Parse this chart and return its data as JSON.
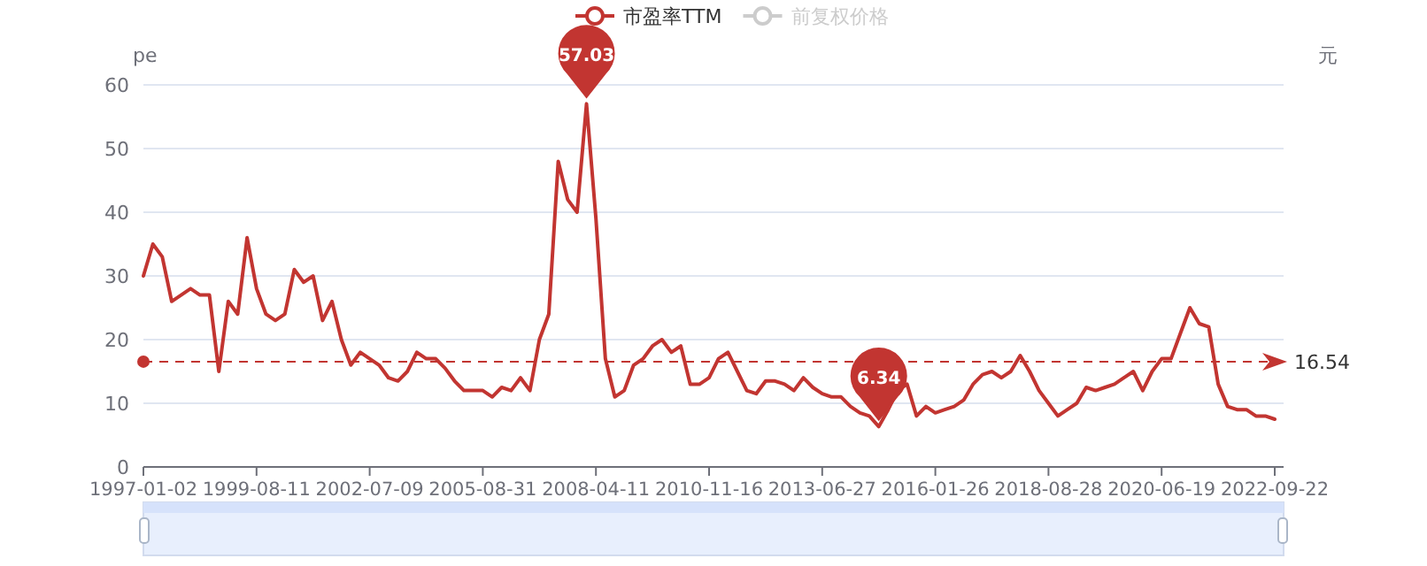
{
  "chart_data": {
    "type": "line",
    "ylabel": "pe",
    "y2label": "元",
    "legend": "top",
    "grid": "y",
    "marker": "none",
    "line_style": "solid",
    "categories": [
      "1997-01-02",
      null,
      null,
      null,
      null,
      null,
      null,
      null,
      null,
      null,
      null,
      null,
      "1999-08-11",
      null,
      null,
      null,
      null,
      null,
      null,
      null,
      null,
      null,
      null,
      null,
      "2002-07-09",
      null,
      null,
      null,
      null,
      null,
      null,
      null,
      null,
      null,
      null,
      null,
      "2005-08-31",
      null,
      null,
      null,
      null,
      null,
      null,
      null,
      null,
      null,
      null,
      null,
      "2008-04-11",
      null,
      null,
      null,
      null,
      null,
      null,
      null,
      null,
      null,
      null,
      null,
      "2010-11-16",
      null,
      null,
      null,
      null,
      null,
      null,
      null,
      null,
      null,
      null,
      null,
      "2013-06-27",
      null,
      null,
      null,
      null,
      null,
      null,
      null,
      null,
      null,
      null,
      null,
      "2016-01-26",
      null,
      null,
      null,
      null,
      null,
      null,
      null,
      null,
      null,
      null,
      null,
      "2018-08-28",
      null,
      null,
      null,
      null,
      null,
      null,
      null,
      null,
      null,
      null,
      null,
      "2020-06-19",
      null,
      null,
      null,
      null,
      null,
      null,
      null,
      null,
      null,
      null,
      null,
      "2022-09-22"
    ],
    "ylim": [
      0,
      60
    ],
    "yticks": [
      0,
      10,
      20,
      30,
      40,
      50,
      60
    ],
    "series": [
      {
        "name": "市盈率TTM",
        "color": "#c23531",
        "values": [
          30,
          35,
          33,
          26,
          27,
          28,
          27,
          27,
          15,
          26,
          24,
          36,
          28,
          24,
          23,
          24,
          31,
          29,
          30,
          23,
          26,
          20,
          16,
          18,
          17,
          16,
          14,
          13.5,
          15,
          18,
          17,
          17,
          15.5,
          13.5,
          12,
          12,
          12,
          11,
          12.5,
          12,
          14,
          12,
          20,
          24,
          48,
          42,
          40,
          57.03,
          39,
          17,
          11,
          12,
          16,
          17,
          19,
          20,
          18,
          19,
          13,
          13,
          14,
          17,
          18,
          15,
          12,
          11.5,
          13.5,
          13.5,
          13,
          12,
          14,
          12.5,
          11.5,
          11,
          11,
          9.5,
          8.5,
          8,
          6.34,
          9,
          12,
          13,
          8,
          9.5,
          8.5,
          9,
          9.5,
          10.5,
          13,
          14.5,
          15,
          14,
          15,
          17.5,
          15,
          12,
          10,
          8,
          9,
          10,
          12.5,
          12,
          12.5,
          13,
          14,
          15,
          12,
          15,
          17,
          17,
          21,
          25,
          22.5,
          22,
          13,
          9.5,
          9,
          9,
          8,
          8,
          7.5
        ]
      },
      {
        "name": "前复权价格",
        "color": "#cccccc",
        "axis": "y2",
        "values": [
          null,
          null,
          null,
          null,
          null,
          null,
          null,
          null,
          null,
          null,
          null,
          null,
          null,
          null,
          null,
          null,
          null,
          null,
          null,
          null,
          null,
          null,
          null,
          null,
          null,
          null,
          null,
          null,
          null,
          null,
          null,
          null,
          null,
          null,
          null,
          null,
          null,
          null,
          null,
          null,
          null,
          null,
          null,
          null,
          null,
          null,
          null,
          null,
          null,
          null,
          null,
          null,
          null,
          null,
          null,
          null,
          null,
          null,
          null,
          null,
          null,
          null,
          null,
          null,
          null,
          null,
          null,
          null,
          null,
          null,
          null,
          null,
          null,
          null,
          null,
          null,
          null,
          null,
          null,
          null,
          null,
          null,
          null,
          null,
          null,
          null,
          null,
          null,
          null,
          null,
          null,
          null,
          null,
          null,
          null,
          null,
          null,
          null,
          null,
          null,
          null,
          null,
          null,
          null,
          null,
          null,
          null,
          null,
          null,
          null,
          null,
          null,
          null,
          null,
          null,
          null,
          null,
          null,
          null,
          null,
          null
        ]
      }
    ],
    "ref_lines": [
      {
        "axis": "y",
        "value": 16.54,
        "label": "16.54",
        "line_style": "dashed"
      }
    ],
    "annotations": [
      {
        "text": "57.03",
        "y": 57.03
      },
      {
        "text": "6.34",
        "y": 6.34
      }
    ]
  }
}
